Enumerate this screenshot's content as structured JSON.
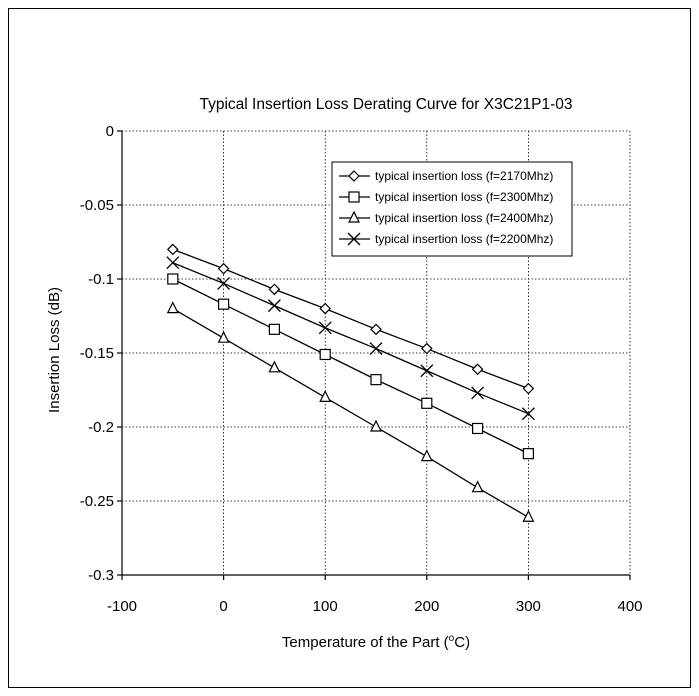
{
  "chart_data": {
    "type": "line",
    "title": "Typical Insertion Loss Derating Curve for X3C21P1-03",
    "xlabel_prefix": "Temperature of the Part (",
    "xlabel_sup": "o",
    "xlabel_suffix": "C)",
    "ylabel": "Insertion Loss (dB)",
    "xlim": [
      -100,
      400
    ],
    "ylim": [
      -0.3,
      0
    ],
    "xticks": [
      -100,
      0,
      100,
      200,
      300,
      400
    ],
    "yticks": [
      0,
      -0.05,
      -0.1,
      -0.15,
      -0.2,
      -0.25,
      -0.3
    ],
    "xtick_labels": [
      "-100",
      "0",
      "100",
      "200",
      "300",
      "400"
    ],
    "ytick_labels": [
      "0",
      "-0.05",
      "-0.1",
      "-0.15",
      "-0.2",
      "-0.25",
      "-0.3"
    ],
    "grid": true,
    "legend_position": "top-right",
    "x": [
      -50,
      0,
      50,
      100,
      150,
      200,
      250,
      300
    ],
    "series": [
      {
        "name": "typical insertion loss (f=2170Mhz)",
        "marker": "diamond",
        "values": [
          -0.08,
          -0.093,
          -0.107,
          -0.12,
          -0.134,
          -0.147,
          -0.161,
          -0.174
        ]
      },
      {
        "name": "typical insertion loss (f=2300Mhz)",
        "marker": "square",
        "values": [
          -0.1,
          -0.117,
          -0.134,
          -0.151,
          -0.168,
          -0.184,
          -0.201,
          -0.218
        ]
      },
      {
        "name": "typical insertion loss (f=2400Mhz)",
        "marker": "triangle",
        "values": [
          -0.12,
          -0.14,
          -0.16,
          -0.18,
          -0.2,
          -0.22,
          -0.241,
          -0.261
        ]
      },
      {
        "name": "typical insertion loss (f=2200Mhz)",
        "marker": "x",
        "values": [
          -0.089,
          -0.103,
          -0.118,
          -0.133,
          -0.147,
          -0.162,
          -0.177,
          -0.191
        ]
      }
    ]
  }
}
